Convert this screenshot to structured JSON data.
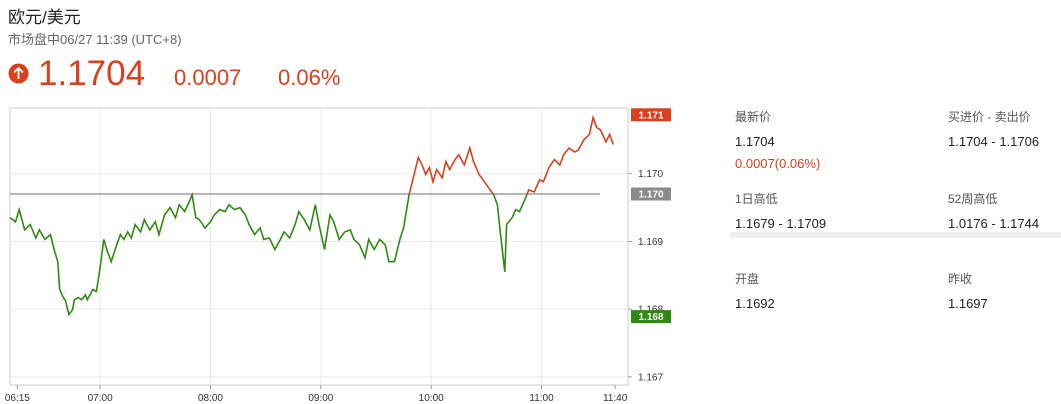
{
  "quote": {
    "title": "欧元/美元",
    "status": "市场盘中06/27 11:39 (UTC+8)",
    "price": "1.1704",
    "change": "0.0007",
    "change_pct": "0.06%"
  },
  "stats": [
    {
      "label": "最新价",
      "value": "1.1704",
      "note": "0.0007(0.06%)"
    },
    {
      "label": "买进价 - 卖出价",
      "value": "1.1704 - 1.1706"
    },
    {
      "label": "1日高低",
      "value": "1.1679 - 1.1709"
    },
    {
      "label": "52周高低",
      "value": "1.0176 - 1.1744"
    },
    {
      "label": "开盘",
      "value": "1.1692"
    },
    {
      "label": "昨收",
      "value": "1.1697"
    }
  ],
  "chart_data": {
    "type": "line",
    "color_above": "#d9411e",
    "color_below": "#2f8a12",
    "grid": true,
    "xlim": [
      "06:11",
      "11:47"
    ],
    "xticks": [
      "06:15",
      "07:00",
      "08:00",
      "09:00",
      "10:00",
      "11:00",
      "11:40"
    ],
    "ylim": [
      1.16688,
      1.17097
    ],
    "yticks": [
      1.167,
      1.168,
      1.169,
      {
        "value": 1.17,
        "label": "1.170"
      }
    ],
    "markers": [
      {
        "value": 1.17087,
        "label": "1.171",
        "color": "#d9411e"
      },
      {
        "value": 1.1697,
        "label": "1.170",
        "color": "#8a8a8a",
        "line": true
      },
      {
        "value": 1.16789,
        "label": "1.168",
        "color": "#2f8a12"
      }
    ],
    "x": [
      "06:11",
      "06:14",
      "06:16",
      "06:19",
      "06:22",
      "06:25",
      "06:27",
      "06:30",
      "06:33",
      "06:35",
      "06:37",
      "06:38",
      "06:40",
      "06:41",
      "06:43",
      "06:45",
      "06:46",
      "06:48",
      "06:50",
      "06:52",
      "06:53",
      "06:56",
      "06:58",
      "07:00",
      "07:02",
      "07:04",
      "07:06",
      "07:09",
      "07:11",
      "07:13",
      "07:15",
      "07:17",
      "07:19",
      "07:22",
      "07:24",
      "07:27",
      "07:30",
      "07:32",
      "07:35",
      "07:38",
      "07:41",
      "07:43",
      "07:46",
      "07:49",
      "07:50",
      "07:52",
      "07:54",
      "07:57",
      "08:00",
      "08:02",
      "08:05",
      "08:08",
      "08:10",
      "08:13",
      "08:16",
      "08:19",
      "08:21",
      "08:24",
      "08:27",
      "08:29",
      "08:32",
      "08:35",
      "08:38",
      "08:40",
      "08:43",
      "08:46",
      "08:48",
      "08:51",
      "08:54",
      "08:57",
      "08:59",
      "09:02",
      "09:05",
      "09:07",
      "09:10",
      "09:13",
      "09:16",
      "09:18",
      "09:21",
      "09:24",
      "09:26",
      "09:29",
      "09:32",
      "09:35",
      "09:37",
      "09:40",
      "09:43",
      "09:45",
      "09:48",
      "09:50",
      "09:53",
      "09:55",
      "09:57",
      "09:59",
      "10:01",
      "10:03",
      "10:06",
      "10:08",
      "10:10",
      "10:13",
      "10:15",
      "10:18",
      "10:21",
      "10:23",
      "10:26",
      "10:29",
      "10:32",
      "10:34",
      "10:36",
      "10:38",
      "10:40",
      "10:41",
      "10:44",
      "10:46",
      "10:48",
      "10:51",
      "10:53",
      "10:56",
      "10:59",
      "11:01",
      "11:04",
      "11:07",
      "11:10",
      "11:12",
      "11:15",
      "11:18",
      "11:20",
      "11:23",
      "11:26",
      "11:28",
      "11:30",
      "11:32",
      "11:35",
      "11:37",
      "11:39"
    ],
    "values": [
      1.16935,
      1.16929,
      1.16947,
      1.16917,
      1.16925,
      1.16905,
      1.16917,
      1.16903,
      1.1691,
      1.16888,
      1.1687,
      1.16829,
      1.16817,
      1.16814,
      1.16792,
      1.16799,
      1.16814,
      1.16817,
      1.16814,
      1.16821,
      1.16814,
      1.16829,
      1.16826,
      1.16861,
      1.16903,
      1.16885,
      1.1687,
      1.16895,
      1.1691,
      1.16903,
      1.16914,
      1.16905,
      1.16925,
      1.16914,
      1.16932,
      1.16917,
      1.16929,
      1.1691,
      1.16939,
      1.1695,
      1.16935,
      1.16954,
      1.16944,
      1.16962,
      1.16969,
      1.16935,
      1.16932,
      1.1692,
      1.16929,
      1.16939,
      1.16947,
      1.16944,
      1.16954,
      1.16947,
      1.1695,
      1.16939,
      1.16925,
      1.1691,
      1.1692,
      1.16903,
      1.16905,
      1.16888,
      1.16903,
      1.16914,
      1.16905,
      1.16925,
      1.16944,
      1.16932,
      1.16917,
      1.16954,
      1.16925,
      1.16888,
      1.16939,
      1.16929,
      1.16903,
      1.16914,
      1.16917,
      1.16903,
      1.16895,
      1.16876,
      1.16903,
      1.16888,
      1.16903,
      1.16895,
      1.1687,
      1.1687,
      1.16903,
      1.1692,
      1.16969,
      1.16991,
      1.17024,
      1.17013,
      1.16999,
      1.17009,
      1.16988,
      1.17006,
      1.16994,
      1.17018,
      1.17006,
      1.17021,
      1.17028,
      1.17013,
      1.17038,
      1.17018,
      1.16999,
      1.16988,
      1.16976,
      1.16969,
      1.16954,
      1.16903,
      1.16855,
      1.16925,
      1.16935,
      1.16947,
      1.16944,
      1.16962,
      1.16976,
      1.16973,
      1.16991,
      1.16988,
      1.17009,
      1.17021,
      1.17013,
      1.17028,
      1.17038,
      1.17032,
      1.17035,
      1.1705,
      1.17058,
      1.17083,
      1.17068,
      1.17065,
      1.17047,
      1.17058,
      1.17043
    ]
  }
}
